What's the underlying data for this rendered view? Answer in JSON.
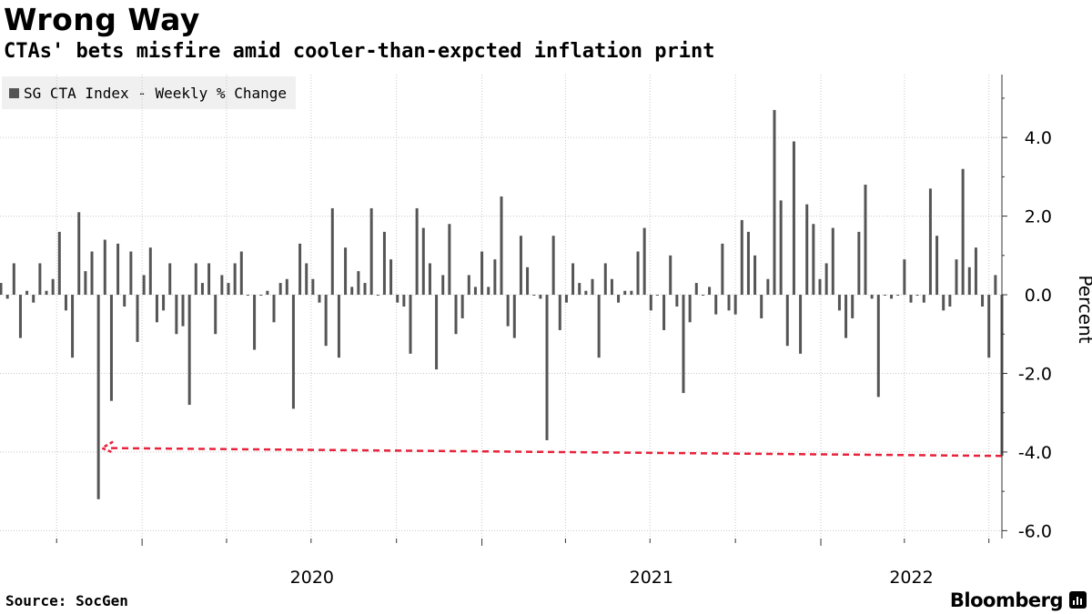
{
  "header": {
    "title": "Wrong Way",
    "subtitle": "CTAs' bets misfire amid cooler-than-expcted inflation print"
  },
  "footer": {
    "source": "Source: SocGen",
    "brand": "Bloomberg"
  },
  "colors": {
    "bar": "#555555",
    "grid": "#c8c8c8",
    "annotation": "#e8223a",
    "legend_bg": "#f0f0f0"
  },
  "chart_data": {
    "type": "bar",
    "title": "Wrong Way",
    "subtitle": "CTAs' bets misfire amid cooler-than-expcted inflation print",
    "legend": [
      "SG CTA Index - Weekly % Change"
    ],
    "legend_position": "top-left",
    "ylabel": "Percent",
    "ylim": [
      -6.2,
      5.6
    ],
    "yticks": [
      4,
      2,
      0,
      -2,
      -4,
      -6
    ],
    "ytick_labels": [
      "4.0",
      "2.0",
      "0.0",
      "-2.0",
      "-4.0",
      "-6.0"
    ],
    "y_axis_side": "right",
    "x_start": "2019-08-01",
    "x_end": "2022-07-15",
    "xtick_labels": [
      {
        "label": "2020",
        "at": "2020-01-01"
      },
      {
        "label": "2021",
        "at": "2021-01-01"
      },
      {
        "label": "2022",
        "at": "2022-01-01"
      }
    ],
    "grid": true,
    "series": [
      {
        "name": "SG CTA Index - Weekly % Change",
        "start_date": "2019-08-02",
        "frequency_days": 7,
        "values": [
          0.3,
          -0.1,
          0.8,
          -1.1,
          0.1,
          -0.2,
          0.8,
          0.1,
          0.4,
          1.6,
          -0.4,
          -1.6,
          2.1,
          0.6,
          1.1,
          -5.2,
          1.4,
          -2.7,
          1.3,
          -0.3,
          1.1,
          -1.2,
          0.5,
          1.2,
          -0.7,
          -0.4,
          0.8,
          -1.0,
          -0.8,
          -2.8,
          0.8,
          0.3,
          0.8,
          -1.0,
          0.5,
          0.3,
          0.8,
          1.1,
          0.0,
          -1.4,
          0.0,
          0.1,
          -0.7,
          0.3,
          0.4,
          -2.9,
          1.3,
          0.8,
          0.4,
          -0.2,
          -1.3,
          2.2,
          -1.6,
          1.2,
          0.2,
          0.6,
          0.3,
          2.2,
          0.0,
          1.6,
          0.9,
          -0.2,
          -0.3,
          -1.5,
          2.2,
          1.7,
          0.8,
          -1.9,
          0.5,
          1.8,
          -1.0,
          -0.6,
          0.5,
          0.2,
          1.1,
          0.2,
          0.9,
          2.5,
          -0.8,
          -1.1,
          1.5,
          0.7,
          0.0,
          -0.1,
          -3.7,
          1.5,
          -0.9,
          -0.2,
          0.8,
          0.3,
          0.1,
          0.4,
          -1.6,
          0.8,
          0.4,
          -0.2,
          0.1,
          0.1,
          1.1,
          1.7,
          -0.4,
          0.0,
          -0.9,
          1.0,
          -0.3,
          -2.5,
          -0.7,
          0.3,
          0.0,
          0.2,
          -0.5,
          1.3,
          -0.4,
          -0.5,
          1.9,
          1.6,
          1.0,
          -0.6,
          0.4,
          4.7,
          2.4,
          -1.3,
          3.9,
          -1.5,
          2.3,
          1.8,
          0.4,
          0.8,
          1.7,
          -0.4,
          -1.1,
          -0.6,
          1.6,
          2.8,
          -0.1,
          -2.6,
          0.0,
          -0.1,
          0.0,
          0.9,
          -0.2,
          0.0,
          -0.2,
          2.7,
          1.5,
          -0.4,
          -0.3,
          0.9,
          3.2,
          0.7,
          1.2,
          -0.3,
          -1.6,
          0.5,
          -4.1
        ]
      }
    ],
    "annotation": {
      "type": "dashed-arrow",
      "from_date": "2022-07-15",
      "from_value": -4.1,
      "to_date": "2019-11-15",
      "to_value": -3.9
    }
  }
}
